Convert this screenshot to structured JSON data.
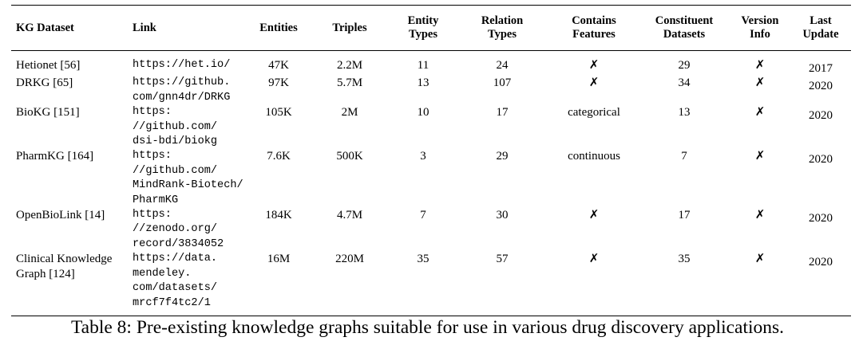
{
  "table": {
    "header": [
      [
        "KG Dataset"
      ],
      [
        "Link"
      ],
      [
        "Entities"
      ],
      [
        "Triples"
      ],
      [
        "Entity",
        "Types"
      ],
      [
        "Relation",
        "Types"
      ],
      [
        "Contains",
        "Features"
      ],
      [
        "Constituent",
        "Datasets"
      ],
      [
        "Version",
        "Info"
      ],
      [
        "Last",
        "Update"
      ]
    ],
    "rows": [
      [
        [
          "Hetionet [56]"
        ],
        [
          "https://het.io/"
        ],
        [
          "47K"
        ],
        [
          "2.2M"
        ],
        [
          "11"
        ],
        [
          "24"
        ],
        [
          "✗"
        ],
        [
          "29"
        ],
        [
          "✗"
        ],
        [
          "2017"
        ]
      ],
      [
        [
          "DRKG [65]"
        ],
        [
          "https://github.",
          "com/gnn4dr/DRKG"
        ],
        [
          "97K"
        ],
        [
          "5.7M"
        ],
        [
          "13"
        ],
        [
          "107"
        ],
        [
          "✗"
        ],
        [
          "34"
        ],
        [
          "✗"
        ],
        [
          "2020"
        ]
      ],
      [
        [
          "BioKG [151]"
        ],
        [
          "https:",
          "//github.com/",
          "dsi-bdi/biokg"
        ],
        [
          "105K"
        ],
        [
          "2M"
        ],
        [
          "10"
        ],
        [
          "17"
        ],
        [
          "categorical"
        ],
        [
          "13"
        ],
        [
          "✗"
        ],
        [
          "2020"
        ]
      ],
      [
        [
          "PharmKG [164]"
        ],
        [
          "https:",
          "//github.com/",
          "MindRank-Biotech/",
          "PharmKG"
        ],
        [
          "7.6K"
        ],
        [
          "500K"
        ],
        [
          "3"
        ],
        [
          "29"
        ],
        [
          "continuous"
        ],
        [
          "7"
        ],
        [
          "✗"
        ],
        [
          "2020"
        ]
      ],
      [
        [
          "OpenBioLink [14]"
        ],
        [
          "https:",
          "//zenodo.org/",
          "record/3834052"
        ],
        [
          "184K"
        ],
        [
          "4.7M"
        ],
        [
          "7"
        ],
        [
          "30"
        ],
        [
          "✗"
        ],
        [
          "17"
        ],
        [
          "✗"
        ],
        [
          "2020"
        ]
      ],
      [
        [
          "Clinical Knowledge",
          "Graph [124]"
        ],
        [
          "https://data.",
          "mendeley.",
          "com/datasets/",
          "mrcf7f4tc2/1"
        ],
        [
          "16M"
        ],
        [
          "220M"
        ],
        [
          "35"
        ],
        [
          "57"
        ],
        [
          "✗"
        ],
        [
          "35"
        ],
        [
          "✗"
        ],
        [
          "2020"
        ]
      ]
    ],
    "caption": "Table 8: Pre-existing knowledge graphs suitable for use in various drug discovery applications."
  }
}
